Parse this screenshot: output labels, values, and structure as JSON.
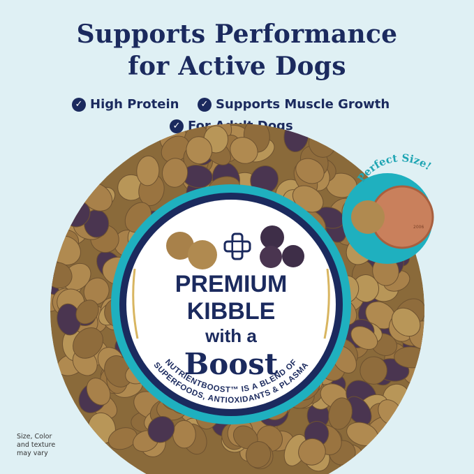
{
  "headline": {
    "line1": "Supports Performance",
    "line2": "for Active Dogs"
  },
  "features": [
    {
      "icon": "check-circle-icon",
      "label": "High Protein"
    },
    {
      "icon": "check-circle-icon",
      "label": "Supports Muscle Growth"
    },
    {
      "icon": "check-circle-icon",
      "label": "For Adult Dogs"
    }
  ],
  "badge": {
    "line1": "PREMIUM",
    "line2": "KIBBLE",
    "line3": "with a",
    "line4": "Boost",
    "curved_line1": "NUTRIENTBOOST™ IS A BLEND OF",
    "curved_line2": "SUPERFOODS, ANTIOXIDANTS & PLASMA"
  },
  "size_callout": {
    "label": "Perfect Size!",
    "coin_year": "2006"
  },
  "disclaimer": {
    "line1": "Size, Color",
    "line2": "and texture",
    "line3": "may vary"
  },
  "colors": {
    "background": "#dff0f4",
    "navy": "#1b2a5e",
    "teal": "#1fb0bf",
    "kibble": "#a8814a",
    "boost_kibble": "#4a3550"
  }
}
